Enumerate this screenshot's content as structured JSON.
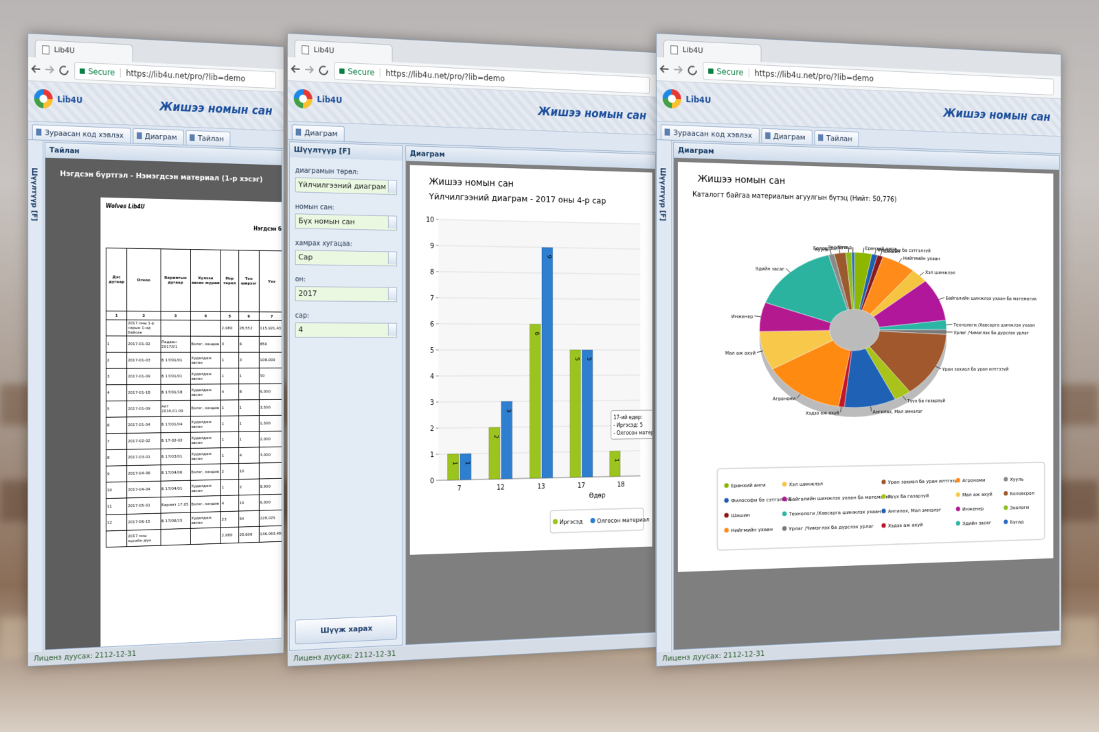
{
  "windows": [
    {
      "browser": {
        "tab_title": "Lib4U",
        "secure": "Secure",
        "url": "https://lib4u.net/pro/?lib=demo"
      },
      "app": {
        "logo_text": "Lib4U",
        "title": "Жишээ номын сан"
      },
      "tabs": [
        "Зураасан код хэвлэх",
        "Диаграм",
        "Тайлан"
      ],
      "sidebar_label": "Шүүлтүүр [F]",
      "panel_title": "Тайлан",
      "report": {
        "heading": "Нэгдсэн бүртгэл - Нэмэгдсэн материал (1-р хэсэг)",
        "org": "Wolves Lib4U",
        "doc_title": "Нэгдсэн бү",
        "columns": [
          "Дэс дугаар",
          "Огноо",
          "Баримтын дугаар",
          "Хүлээн авсан журам",
          "Нэр төрөл",
          "Тоо ширхэг",
          "Үнэ"
        ],
        "column_numbers": [
          "1",
          "2",
          "3",
          "4",
          "5",
          "6",
          "7"
        ],
        "rows": [
          [
            "",
            "2017 оны 1-р сарын 1-нд байсан",
            "",
            "",
            "2,980",
            "28,552",
            "115,921,431"
          ],
          [
            "1",
            "2017-01-02",
            "Падаан 2017/01",
            "Бэлэг, хандив",
            "3",
            "6",
            "850"
          ],
          [
            "2",
            "2017-01-03",
            "Б 17/01/01",
            "Худалдаж авсан",
            "1",
            "3",
            "108,000"
          ],
          [
            "3",
            "2017-01-09",
            "Б 17/01/01",
            "Худалдаж авсан",
            "1",
            "1",
            "50"
          ],
          [
            "4",
            "2017-01-18",
            "Б 17/01/18",
            "Худалдаж авсан",
            "4",
            "8",
            "6,000"
          ],
          [
            "5",
            "2017-01-09",
            "Акт 2016.01.09",
            "Бэлэг, хандив",
            "1",
            "1",
            "3,500"
          ],
          [
            "6",
            "2017-01-04",
            "Б 17/01/04",
            "Худалдаж авсан",
            "1",
            "1",
            "1,500"
          ],
          [
            "7",
            "2017-02-02",
            "Б 17-02-02",
            "Худалдаж авсан",
            "1",
            "1",
            "2,000"
          ],
          [
            "8",
            "2017-03-01",
            "Б 17/03/01",
            "Худалдаж авсан",
            "1",
            "4",
            "3,000"
          ],
          [
            "9",
            "2017-04-06",
            "Б 17/04/06",
            "Бэлэг, хандив",
            "2",
            "10",
            ""
          ],
          [
            "10",
            "2017-04-04",
            "Б 17/04/01",
            "Худалдаж авсан",
            "1",
            "2",
            "8,900"
          ],
          [
            "11",
            "2017-05-01",
            "Баримт 17.05",
            "Бэлэг, хандив",
            "4",
            "14",
            "6,000"
          ],
          [
            "12",
            "2017-06-15",
            "Б 17/06/15",
            "Худалдаж авсан",
            "23",
            "54",
            "228,025"
          ],
          [
            "",
            "2017 оны эцсийн дүн",
            "",
            "",
            "2,980",
            "28,606",
            "136,063,480"
          ]
        ]
      },
      "status": "Лиценз дуусах: 2112-12-31"
    },
    {
      "browser": {
        "tab_title": "Lib4U",
        "secure": "Secure",
        "url": "https://lib4u.net/pro/?lib=demo"
      },
      "app": {
        "logo_text": "Lib4U",
        "title": "Жишээ номын сан"
      },
      "tabs": [
        "Диаграм"
      ],
      "filter": {
        "title": "Шүүлтүүр [F]",
        "fields": [
          {
            "label": "диаграмын төрөл:",
            "value": "Үйлчилгээний диаграм"
          },
          {
            "label": "номын сан:",
            "value": "Бүх номын сан"
          },
          {
            "label": "хамрах хугацаа:",
            "value": "Сар"
          },
          {
            "label": "он:",
            "value": "2017"
          },
          {
            "label": "сар:",
            "value": "4"
          }
        ],
        "button": "Шүүж харах"
      },
      "panel_title": "Диаграм",
      "status": "Лиценз дуусах: 2112-12-31"
    },
    {
      "browser": {
        "tab_title": "Lib4U",
        "secure": "Secure",
        "url": "https://lib4u.net/pro/?lib=demo"
      },
      "app": {
        "logo_text": "Lib4U",
        "title": "Жишээ номын сан"
      },
      "tabs": [
        "Зураасан код хэвлэх",
        "Диаграм",
        "Тайлан"
      ],
      "sidebar_label": "Шүүлтүүр [F]",
      "panel_title": "Диаграм",
      "status": "Лиценз дуусах: 2112-12-31"
    }
  ],
  "chart_data": [
    {
      "type": "bar",
      "title": "Жишээ номын сан",
      "subtitle": "Үйлчилгээний диаграм - 2017 оны 4-р сар",
      "x_label": "Өдөр",
      "categories": [
        "7",
        "12",
        "13",
        "17",
        "18"
      ],
      "series": [
        {
          "name": "Иргэсэд",
          "color": "#9cc41e",
          "values": [
            1,
            2,
            6,
            5,
            1
          ]
        },
        {
          "name": "Олгосон материал",
          "color": "#2f7fd0",
          "values": [
            1,
            3,
            9,
            5,
            null
          ]
        }
      ],
      "ylim": [
        0,
        10
      ],
      "yticks": [
        0,
        1,
        2,
        3,
        4,
        5,
        6,
        7,
        8,
        9,
        10
      ],
      "grid": true,
      "tooltip": [
        "17-ий өдөр:",
        "- Иргэсэд: 5",
        "- Олгосон матер"
      ]
    },
    {
      "type": "pie",
      "donut": true,
      "title": "Жишээ номын сан",
      "subtitle": "Каталогт байгаа материалын агуулгын бүтэц (Нийт: 50,776)",
      "categories": [
        "Ерөнхий анги",
        "Философи ба сэтгэлзүй",
        "Шашин",
        "Нийгмийн ухаан",
        "Хэл шинжлэл",
        "Байгалийн шинжлэх ухаан ба математик",
        "Технологи /Хавсарга шинжлэх ухаан",
        "Урлаг /Чимэглэх ба дүрслэх урлаг",
        "Уран зохиол ба уран илтгэзүй",
        "Түүх ба газарзүй",
        "Ангилах, Мал эмнэлэг",
        "Хэдээ аж ахуй",
        "Агрономи",
        "Мал аж ахуй",
        "Инженер",
        "Эдийн засаг",
        "Хууль",
        "Боловсрол",
        "Экологи",
        "Бусад"
      ],
      "values": [
        3,
        1,
        1,
        6,
        3,
        9,
        2,
        1,
        14,
        3,
        9,
        1,
        14,
        8,
        6,
        15,
        1,
        2,
        1,
        0.5
      ],
      "colors": [
        "#8db600",
        "#1f5fb0",
        "#8b1a1a",
        "#ff8c1a",
        "#f5c542",
        "#b0179a",
        "#2bb5a5",
        "#7a7a7a",
        "#a0582c",
        "#a9c21c",
        "#1f62b5",
        "#c0182a",
        "#ff8a12",
        "#f7c84a",
        "#b5198f",
        "#2cb3a0",
        "#8a8a8a",
        "#9b5a2e",
        "#8cbf1c",
        "#2a6cc0"
      ]
    }
  ]
}
